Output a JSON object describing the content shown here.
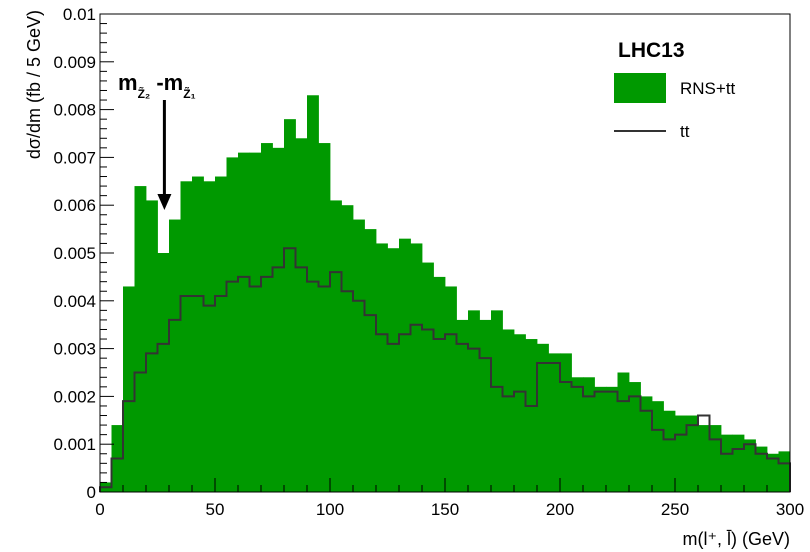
{
  "chart_data": {
    "type": "histogram",
    "title": "",
    "xlabel": "m(l⁺, l̄) (GeV)",
    "ylabel": "dσ/dm (fb / 5 GeV)",
    "xlim": [
      0,
      300
    ],
    "ylim": [
      0,
      0.01
    ],
    "bin_width": 5,
    "x_ticks": [
      0,
      50,
      100,
      150,
      200,
      250,
      300
    ],
    "x_tick_labels": [
      "0",
      "50",
      "100",
      "150",
      "200",
      "250",
      "300"
    ],
    "y_ticks": [
      0,
      0.001,
      0.002,
      0.003,
      0.004,
      0.005,
      0.006,
      0.007,
      0.008,
      0.009,
      0.01
    ],
    "y_tick_labels": [
      "0",
      "0.001",
      "0.002",
      "0.003",
      "0.004",
      "0.005",
      "0.006",
      "0.007",
      "0.008",
      "0.009",
      "0.01"
    ],
    "legend": {
      "title": "LHC13",
      "position": "top-right",
      "entries": [
        "RNS+tt",
        "tt"
      ]
    },
    "annotation": {
      "text_main1": "m",
      "sub1": "Z̃₂",
      "text_main2": " -m",
      "sub2": "Z̃₁",
      "arrow_x": 28,
      "arrow_y_top": 0.0082,
      "arrow_y_bottom": 0.0059
    },
    "series": [
      {
        "name": "RNS+tt",
        "color": "#009900",
        "style": "filled",
        "values": [
          0.0002,
          0.0014,
          0.0043,
          0.0064,
          0.0061,
          0.005,
          0.0057,
          0.0065,
          0.0066,
          0.0065,
          0.0066,
          0.007,
          0.0071,
          0.0071,
          0.0073,
          0.0072,
          0.0078,
          0.0074,
          0.0083,
          0.0073,
          0.0061,
          0.006,
          0.0057,
          0.0055,
          0.0052,
          0.0051,
          0.0053,
          0.0052,
          0.0048,
          0.0045,
          0.0043,
          0.0036,
          0.0038,
          0.0036,
          0.0038,
          0.0034,
          0.0033,
          0.0032,
          0.0031,
          0.0029,
          0.0029,
          0.0024,
          0.0024,
          0.0022,
          0.0022,
          0.0025,
          0.0023,
          0.002,
          0.0019,
          0.0017,
          0.0016,
          0.0016,
          0.0014,
          0.0014,
          0.0012,
          0.0012,
          0.0011,
          0.00095,
          0.0008,
          0.00085
        ]
      },
      {
        "name": "tt",
        "color": "#333333",
        "style": "step",
        "values": [
          0.0001,
          0.0007,
          0.0019,
          0.0025,
          0.0029,
          0.0031,
          0.0036,
          0.0041,
          0.0041,
          0.0039,
          0.0041,
          0.0044,
          0.0045,
          0.0043,
          0.0045,
          0.0047,
          0.0051,
          0.0047,
          0.0044,
          0.0043,
          0.0046,
          0.0042,
          0.004,
          0.0037,
          0.0033,
          0.0031,
          0.0033,
          0.0035,
          0.0034,
          0.0032,
          0.0033,
          0.0031,
          0.003,
          0.0028,
          0.0022,
          0.002,
          0.0021,
          0.0018,
          0.0027,
          0.0027,
          0.0023,
          0.0022,
          0.002,
          0.0021,
          0.0021,
          0.0019,
          0.002,
          0.0017,
          0.0013,
          0.0011,
          0.0012,
          0.0014,
          0.0016,
          0.0011,
          0.0008,
          0.0009,
          0.001,
          0.0008,
          0.0007,
          0.0006
        ]
      }
    ]
  }
}
